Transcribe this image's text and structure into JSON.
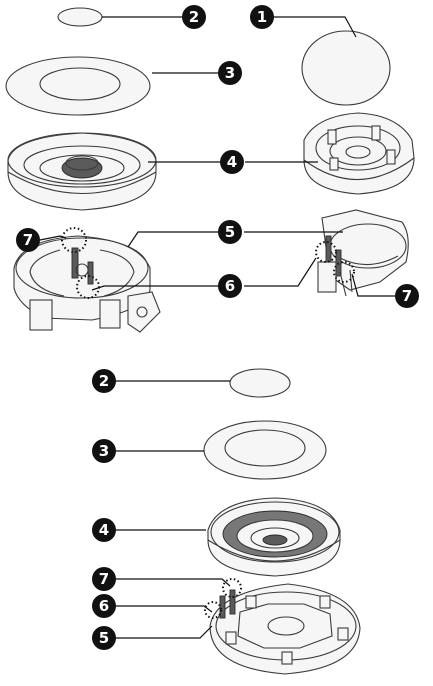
{
  "callouts": {
    "top_left_cap": "2",
    "top_right_cap": "1",
    "top_left_ring": "3",
    "top_burner": "4",
    "top_base_body": "5",
    "top_electrode": "6",
    "top_left_thermo": "7",
    "top_right_thermo": "7",
    "bottom_cap": "2",
    "bottom_ring": "3",
    "bottom_burner": "4",
    "bottom_thermo": "7",
    "bottom_electrode": "6",
    "bottom_base": "5"
  },
  "colors": {
    "badge": "#111111",
    "line": "#111111",
    "part_stroke": "#3a3a3a"
  }
}
